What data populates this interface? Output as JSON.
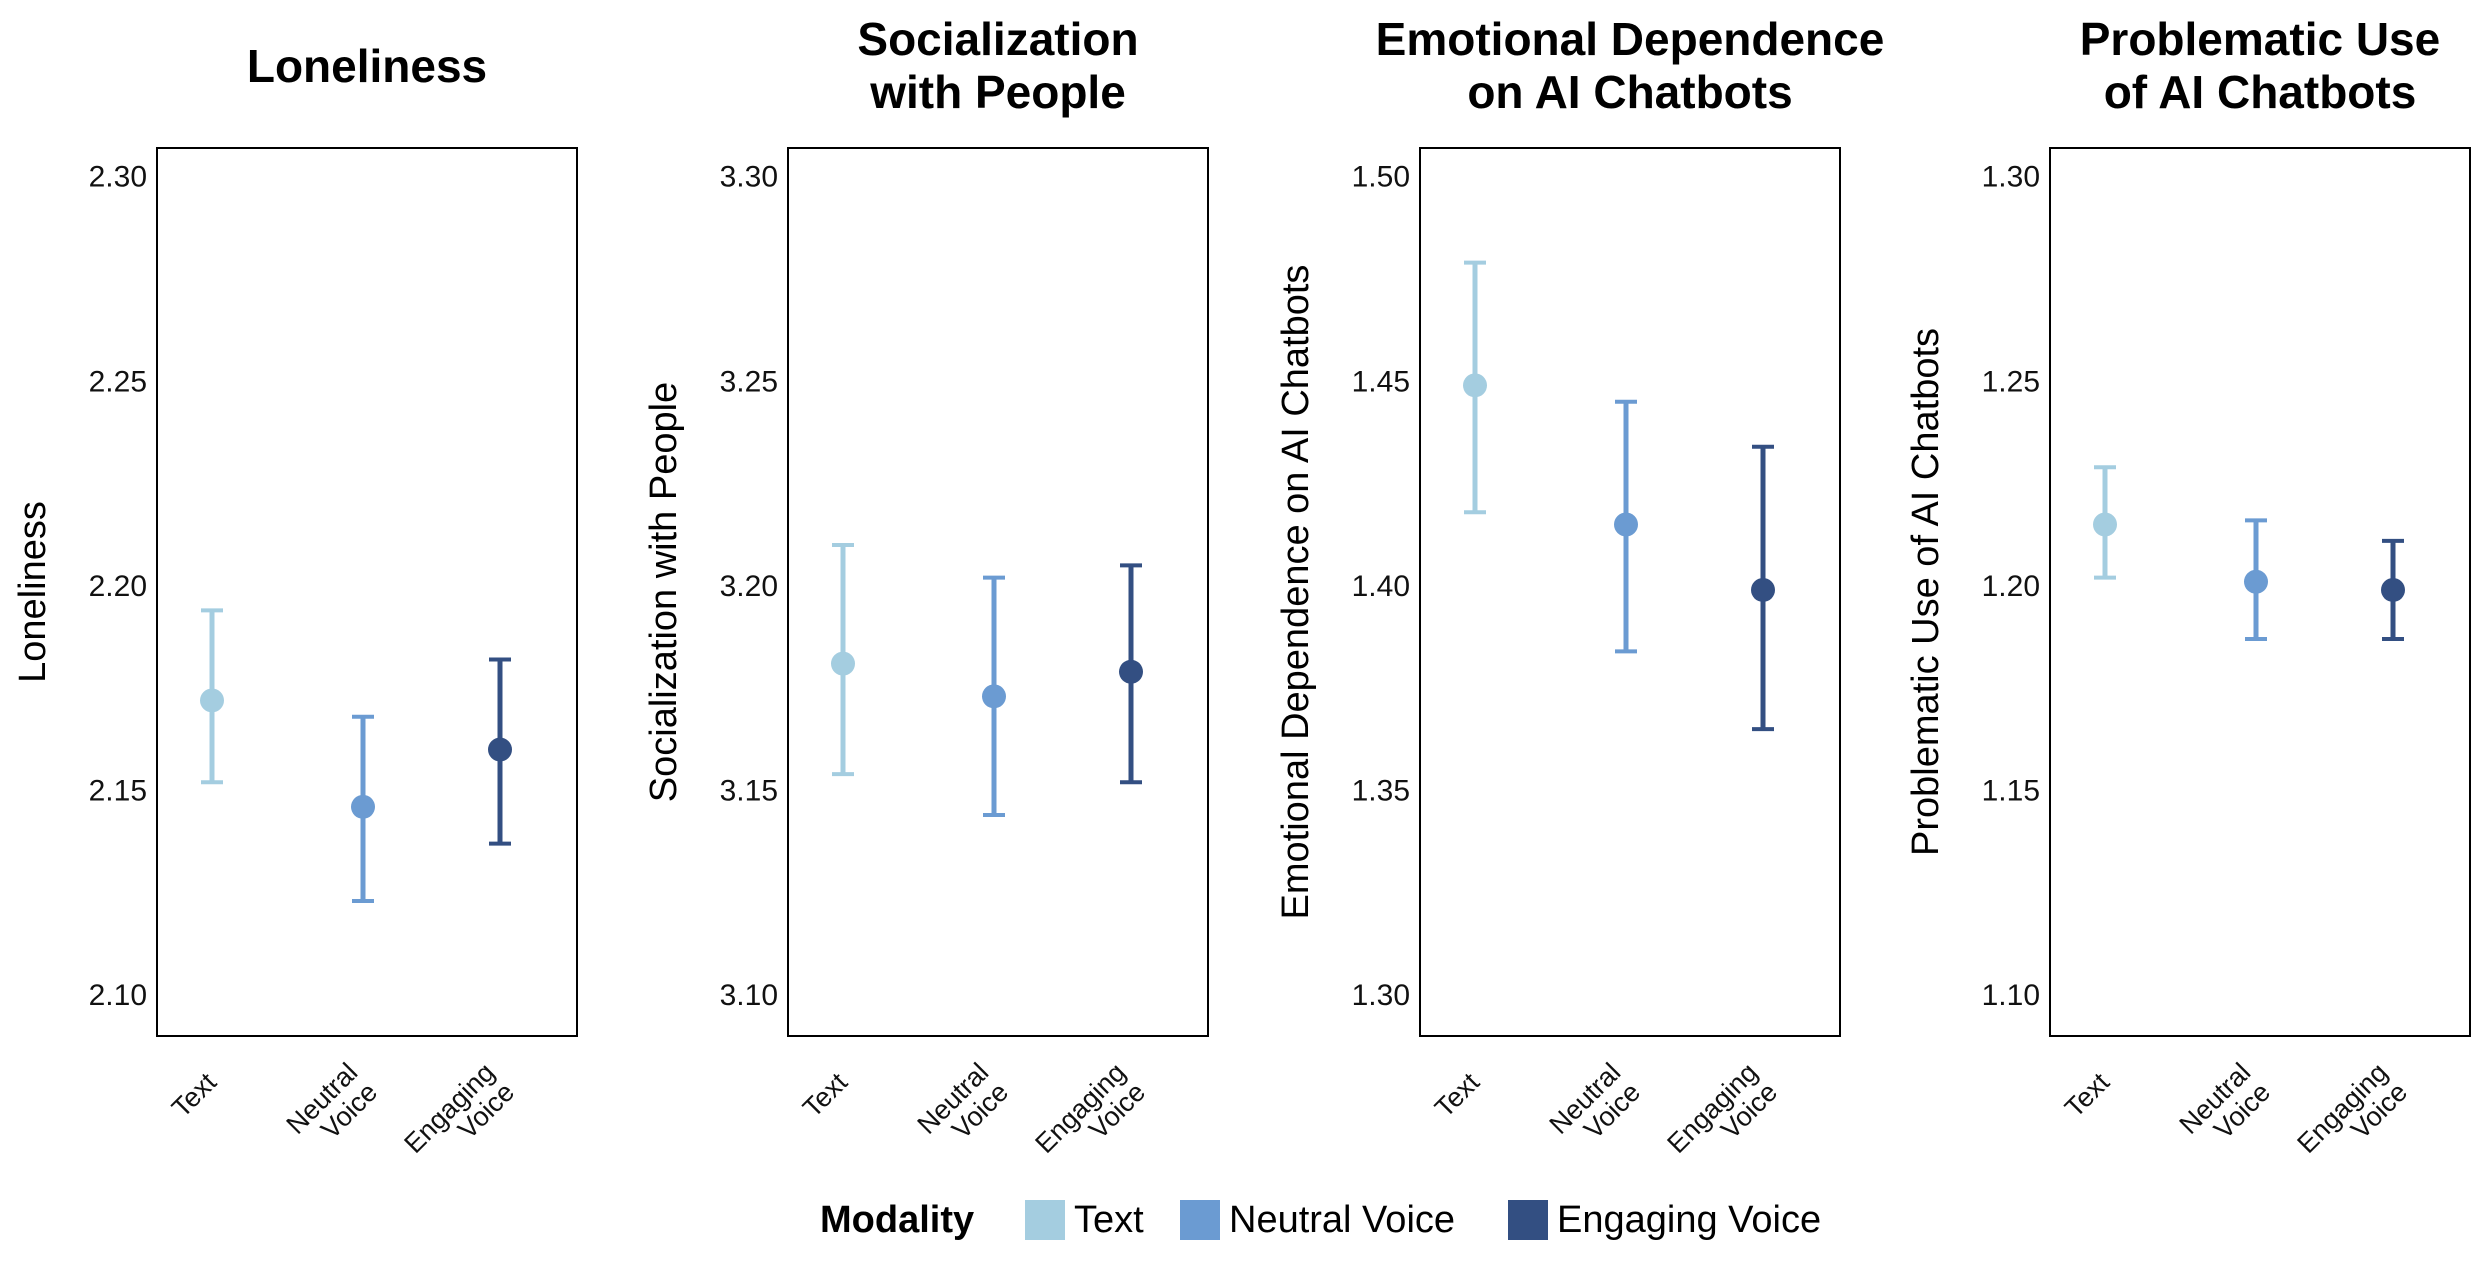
{
  "chart_data": [
    {
      "type": "errorbar",
      "title": [
        "Loneliness"
      ],
      "ylabel": "Loneliness",
      "ylim": [
        2.09,
        2.307
      ],
      "yticks": [
        "2.10",
        "2.15",
        "2.20",
        "2.25",
        "2.30"
      ],
      "ytick_values": [
        2.1,
        2.15,
        2.2,
        2.25,
        2.3
      ],
      "categories": [
        [
          "Text"
        ],
        [
          "Neutral",
          "Voice"
        ],
        [
          "Engaging",
          "Voice"
        ]
      ],
      "series": [
        {
          "name": "Text",
          "mean": 2.172,
          "lower": 2.152,
          "upper": 2.194
        },
        {
          "name": "Neutral Voice",
          "mean": 2.146,
          "lower": 2.123,
          "upper": 2.168
        },
        {
          "name": "Engaging Voice",
          "mean": 2.16,
          "lower": 2.137,
          "upper": 2.182
        }
      ]
    },
    {
      "type": "errorbar",
      "title": [
        "Socialization",
        "with People"
      ],
      "ylabel": "Socialization with People",
      "ylim": [
        3.09,
        3.307
      ],
      "yticks": [
        "3.10",
        "3.15",
        "3.20",
        "3.25",
        "3.30"
      ],
      "ytick_values": [
        3.1,
        3.15,
        3.2,
        3.25,
        3.3
      ],
      "categories": [
        [
          "Text"
        ],
        [
          "Neutral",
          "Voice"
        ],
        [
          "Engaging",
          "Voice"
        ]
      ],
      "series": [
        {
          "name": "Text",
          "mean": 3.181,
          "lower": 3.154,
          "upper": 3.21
        },
        {
          "name": "Neutral Voice",
          "mean": 3.173,
          "lower": 3.144,
          "upper": 3.202
        },
        {
          "name": "Engaging Voice",
          "mean": 3.179,
          "lower": 3.152,
          "upper": 3.205
        }
      ]
    },
    {
      "type": "errorbar",
      "title": [
        "Emotional Dependence",
        "on AI Chatbots"
      ],
      "ylabel": "Emotional Dependence on AI Chatbots",
      "ylim": [
        1.29,
        1.507
      ],
      "yticks": [
        "1.30",
        "1.35",
        "1.40",
        "1.45",
        "1.50"
      ],
      "ytick_values": [
        1.3,
        1.35,
        1.4,
        1.45,
        1.5
      ],
      "categories": [
        [
          "Text"
        ],
        [
          "Neutral",
          "Voice"
        ],
        [
          "Engaging",
          "Voice"
        ]
      ],
      "series": [
        {
          "name": "Text",
          "mean": 1.449,
          "lower": 1.418,
          "upper": 1.479
        },
        {
          "name": "Neutral Voice",
          "mean": 1.415,
          "lower": 1.384,
          "upper": 1.445
        },
        {
          "name": "Engaging Voice",
          "mean": 1.399,
          "lower": 1.365,
          "upper": 1.434
        }
      ]
    },
    {
      "type": "errorbar",
      "title": [
        "Problematic Use",
        "of AI Chatbots"
      ],
      "ylabel": "Problematic Use of AI Chatbots",
      "ylim": [
        1.09,
        1.307
      ],
      "yticks": [
        "1.10",
        "1.15",
        "1.20",
        "1.25",
        "1.30"
      ],
      "ytick_values": [
        1.1,
        1.15,
        1.2,
        1.25,
        1.3
      ],
      "categories": [
        [
          "Text"
        ],
        [
          "Neutral",
          "Voice"
        ],
        [
          "Engaging",
          "Voice"
        ]
      ],
      "series": [
        {
          "name": "Text",
          "mean": 1.215,
          "lower": 1.202,
          "upper": 1.229
        },
        {
          "name": "Neutral Voice",
          "mean": 1.201,
          "lower": 1.187,
          "upper": 1.216
        },
        {
          "name": "Engaging Voice",
          "mean": 1.199,
          "lower": 1.187,
          "upper": 1.211
        }
      ]
    }
  ],
  "legend": {
    "title": "Modality",
    "items": [
      {
        "label": "Text",
        "color": "#a4cde0"
      },
      {
        "label": "Neutral Voice",
        "color": "#6b9bd2"
      },
      {
        "label": "Engaging Voice",
        "color": "#334f82"
      }
    ]
  }
}
